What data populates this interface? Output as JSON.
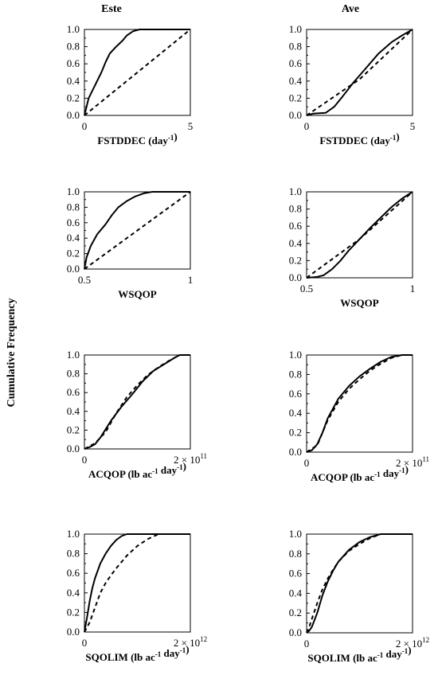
{
  "column_titles": [
    "Este",
    "Ave"
  ],
  "y_axis_label": "Cumulative Frequency",
  "style": {
    "observed_line": "#000000",
    "reference_line": "#000000",
    "background": "#ffffff"
  },
  "chart_data": [
    {
      "type": "line",
      "column": "Este",
      "xlabel": "FSTDDEC (day-1)",
      "xlim": [
        0,
        5
      ],
      "ylim": [
        0,
        1
      ],
      "grid": false,
      "x_tick_labels": [
        "0",
        "5"
      ],
      "y_tick_labels": [
        "0.0",
        "0.2",
        "0.4",
        "0.6",
        "0.8",
        "1.0"
      ],
      "series": [
        {
          "style": "solid",
          "x": [
            0,
            0.2,
            0.5,
            0.8,
            1.0,
            1.2,
            1.5,
            1.8,
            2.0,
            2.3,
            2.6,
            3.0,
            5.0
          ],
          "y": [
            0,
            0.2,
            0.35,
            0.5,
            0.62,
            0.72,
            0.8,
            0.87,
            0.93,
            0.98,
            1.0,
            1.0,
            1.0
          ]
        },
        {
          "style": "dashed",
          "x": [
            0,
            5
          ],
          "y": [
            0,
            1
          ]
        }
      ]
    },
    {
      "type": "line",
      "column": "Ave",
      "xlabel": "FSTDDEC (day-1)",
      "xlim": [
        0,
        5
      ],
      "ylim": [
        0,
        1
      ],
      "grid": false,
      "x_tick_labels": [
        "0",
        "5"
      ],
      "y_tick_labels": [
        "0.0",
        "0.2",
        "0.4",
        "0.6",
        "0.8",
        "1.0"
      ],
      "series": [
        {
          "style": "solid",
          "x": [
            0,
            0.3,
            0.9,
            1.3,
            1.7,
            2.2,
            2.8,
            3.4,
            4.0,
            4.5,
            5.0
          ],
          "y": [
            0,
            0.02,
            0.03,
            0.1,
            0.22,
            0.38,
            0.55,
            0.72,
            0.85,
            0.93,
            1.0
          ]
        },
        {
          "style": "dashed",
          "x": [
            0,
            2.5,
            5
          ],
          "y": [
            0,
            0.42,
            1.0
          ]
        }
      ]
    },
    {
      "type": "line",
      "column": "Este",
      "xlabel": "WSQOP",
      "xlim": [
        0.5,
        1
      ],
      "ylim": [
        0,
        1
      ],
      "grid": false,
      "x_tick_labels": [
        "0.5",
        "1"
      ],
      "y_tick_labels": [
        "0.0",
        "0.2",
        "0.4",
        "0.6",
        "0.8",
        "1.0"
      ],
      "series": [
        {
          "style": "solid",
          "x": [
            0.5,
            0.51,
            0.53,
            0.56,
            0.6,
            0.63,
            0.66,
            0.7,
            0.74,
            0.78,
            0.82,
            1.0
          ],
          "y": [
            0,
            0.15,
            0.3,
            0.45,
            0.58,
            0.7,
            0.8,
            0.88,
            0.94,
            0.98,
            1.0,
            1.0
          ]
        },
        {
          "style": "dashed",
          "x": [
            0.5,
            1.0
          ],
          "y": [
            0,
            1
          ]
        }
      ]
    },
    {
      "type": "line",
      "column": "Ave",
      "xlabel": "WSQOP",
      "xlim": [
        0.5,
        1
      ],
      "ylim": [
        0,
        1
      ],
      "grid": false,
      "x_tick_labels": [
        "0.5",
        "1"
      ],
      "y_tick_labels": [
        "0.0",
        "0.2",
        "0.4",
        "0.6",
        "0.8",
        "1.0"
      ],
      "series": [
        {
          "style": "solid",
          "x": [
            0.5,
            0.55,
            0.58,
            0.62,
            0.66,
            0.7,
            0.75,
            0.8,
            0.85,
            0.9,
            0.95,
            1.0
          ],
          "y": [
            0,
            0.01,
            0.03,
            0.1,
            0.2,
            0.32,
            0.45,
            0.58,
            0.7,
            0.82,
            0.92,
            1.0
          ]
        },
        {
          "style": "dashed",
          "x": [
            0.5,
            0.75,
            1.0
          ],
          "y": [
            0,
            0.45,
            1.0
          ]
        }
      ]
    },
    {
      "type": "line",
      "column": "Este",
      "xlabel": "ACQOP (lb ac-1 day-1)",
      "xlim": [
        0,
        200000000000.0
      ],
      "ylim": [
        0,
        1
      ],
      "grid": false,
      "x_tick_labels": [
        "0",
        "2 × 10^11"
      ],
      "y_tick_labels": [
        "0.0",
        "0.2",
        "0.4",
        "0.6",
        "0.8",
        "1.0"
      ],
      "series": [
        {
          "style": "solid",
          "x": [
            0,
            10000000000.0,
            20000000000.0,
            30000000000.0,
            50000000000.0,
            70000000000.0,
            90000000000.0,
            110000000000.0,
            130000000000.0,
            150000000000.0,
            170000000000.0,
            180000000000.0,
            200000000000.0
          ],
          "y": [
            0,
            0.02,
            0.05,
            0.12,
            0.3,
            0.45,
            0.58,
            0.72,
            0.83,
            0.9,
            0.97,
            1.0,
            1.0
          ]
        },
        {
          "style": "dashed",
          "x": [
            0,
            20000000000.0,
            40000000000.0,
            60000000000.0,
            80000000000.0,
            100000000000.0,
            120000000000.0,
            140000000000.0,
            160000000000.0,
            180000000000.0
          ],
          "y": [
            0,
            0.06,
            0.18,
            0.38,
            0.55,
            0.68,
            0.79,
            0.87,
            0.94,
            1.0
          ]
        }
      ]
    },
    {
      "type": "line",
      "column": "Ave",
      "xlabel": "ACQOP (lb ac-1 day-1)",
      "xlim": [
        0,
        200000000000.0
      ],
      "ylim": [
        0,
        1
      ],
      "grid": false,
      "x_tick_labels": [
        "0",
        "2 × 10^11"
      ],
      "y_tick_labels": [
        "0.0",
        "0.2",
        "0.4",
        "0.6",
        "0.8",
        "1.0"
      ],
      "series": [
        {
          "style": "solid",
          "x": [
            0,
            10000000000.0,
            20000000000.0,
            30000000000.0,
            40000000000.0,
            60000000000.0,
            80000000000.0,
            100000000000.0,
            120000000000.0,
            140000000000.0,
            160000000000.0,
            180000000000.0,
            200000000000.0
          ],
          "y": [
            0,
            0.02,
            0.08,
            0.2,
            0.35,
            0.55,
            0.68,
            0.78,
            0.86,
            0.93,
            0.98,
            1.0,
            1.0
          ]
        },
        {
          "style": "dashed",
          "x": [
            0,
            20000000000.0,
            40000000000.0,
            60000000000.0,
            80000000000.0,
            100000000000.0,
            120000000000.0,
            140000000000.0,
            160000000000.0,
            180000000000.0
          ],
          "y": [
            0,
            0.07,
            0.33,
            0.52,
            0.65,
            0.75,
            0.84,
            0.91,
            0.97,
            1.0
          ]
        }
      ]
    },
    {
      "type": "line",
      "column": "Este",
      "xlabel": "SQOLIM (lb ac-1 day-1)",
      "xlim": [
        0,
        2000000000000.0
      ],
      "ylim": [
        0,
        1
      ],
      "grid": false,
      "x_tick_labels": [
        "0",
        "2 × 10^12"
      ],
      "y_tick_labels": [
        "0.0",
        "0.2",
        "0.4",
        "0.6",
        "0.8",
        "1.0"
      ],
      "series": [
        {
          "style": "solid",
          "x": [
            0,
            50000000000.0,
            100000000000.0,
            150000000000.0,
            200000000000.0,
            300000000000.0,
            400000000000.0,
            500000000000.0,
            600000000000.0,
            700000000000.0,
            800000000000.0,
            2000000000000.0
          ],
          "y": [
            0,
            0.15,
            0.32,
            0.45,
            0.55,
            0.7,
            0.8,
            0.88,
            0.94,
            0.98,
            1.0,
            1.0
          ]
        },
        {
          "style": "dashed",
          "x": [
            0,
            100000000000.0,
            200000000000.0,
            300000000000.0,
            400000000000.0,
            500000000000.0,
            600000000000.0,
            800000000000.0,
            1000000000000.0,
            1200000000000.0,
            1400000000000.0,
            2000000000000.0
          ],
          "y": [
            0,
            0.1,
            0.25,
            0.4,
            0.5,
            0.58,
            0.65,
            0.78,
            0.88,
            0.95,
            1.0,
            1.0
          ]
        }
      ]
    },
    {
      "type": "line",
      "column": "Ave",
      "xlabel": "SQOLIM (lb ac-1 day-1)",
      "xlim": [
        0,
        2000000000000.0
      ],
      "ylim": [
        0,
        1
      ],
      "grid": false,
      "x_tick_labels": [
        "0",
        "2 × 10^12"
      ],
      "y_tick_labels": [
        "0.0",
        "0.2",
        "0.4",
        "0.6",
        "0.8",
        "1.0"
      ],
      "series": [
        {
          "style": "solid",
          "x": [
            0,
            50000000000.0,
            100000000000.0,
            200000000000.0,
            300000000000.0,
            400000000000.0,
            500000000000.0,
            600000000000.0,
            800000000000.0,
            1000000000000.0,
            1200000000000.0,
            1400000000000.0,
            2000000000000.0
          ],
          "y": [
            0,
            0.02,
            0.06,
            0.2,
            0.38,
            0.52,
            0.63,
            0.72,
            0.84,
            0.92,
            0.97,
            1.0,
            1.0
          ]
        },
        {
          "style": "dashed",
          "x": [
            0,
            50000000000.0,
            100000000000.0,
            200000000000.0,
            300000000000.0,
            400000000000.0,
            500000000000.0,
            600000000000.0,
            800000000000.0,
            1000000000000.0,
            1200000000000.0,
            1400000000000.0,
            2000000000000.0
          ],
          "y": [
            0,
            0.06,
            0.14,
            0.3,
            0.44,
            0.55,
            0.64,
            0.72,
            0.83,
            0.9,
            0.96,
            1.0,
            1.0
          ]
        }
      ]
    }
  ]
}
